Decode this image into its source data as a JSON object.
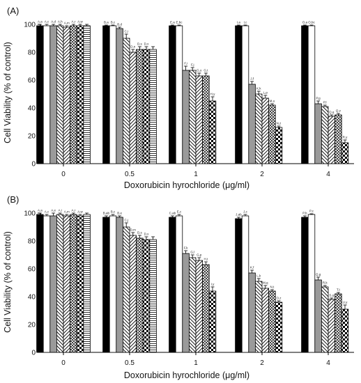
{
  "chart_data": [
    {
      "type": "bar",
      "panel_label": "(A)",
      "xlabel": "Doxorubicin hyrochloride (μg/ml)",
      "ylabel": "Cell Viability (% of control)",
      "ylim": [
        0,
        100
      ],
      "yticks": [
        "0",
        "20",
        "40",
        "60",
        "80",
        "100"
      ],
      "categories": [
        "0",
        "0.5",
        "1",
        "2",
        "4"
      ],
      "series_patterns": [
        "solid-black",
        "white",
        "solid-gray",
        "diagonal-back",
        "diagonal-fwd",
        "crosshatch",
        "checker",
        "horizontal"
      ],
      "groups": [
        {
          "values": [
            99,
            99,
            99,
            99,
            98,
            99,
            99,
            99
          ],
          "errors": [
            1,
            1,
            1,
            1,
            1,
            1,
            1,
            1
          ],
          "labels": [
            "A,a",
            "A,c",
            "A,d",
            "A,h",
            "A,m",
            "A,r",
            "A,w",
            ""
          ]
        },
        {
          "values": [
            99,
            99,
            97,
            90,
            80,
            82,
            82,
            82
          ],
          "errors": [
            0.5,
            0.5,
            1,
            3,
            2,
            2,
            2,
            2
          ],
          "labels": [
            "B,a",
            "B,c",
            "B,d",
            "C,i",
            "D,n",
            "D,s",
            "D,x",
            ""
          ]
        },
        {
          "values": [
            99,
            99,
            67,
            67,
            63,
            63,
            45,
            0
          ],
          "errors": [
            0.5,
            0.5,
            3,
            2,
            2,
            2,
            3,
            0
          ],
          "labels": [
            "E,a",
            "E,bc",
            "F,i",
            "F,j",
            "G,o",
            "G,t",
            "H,y",
            ""
          ]
        },
        {
          "values": [
            99,
            99,
            57,
            50,
            47,
            42,
            26,
            0
          ],
          "errors": [
            0.5,
            0.5,
            2,
            2,
            2,
            1,
            1,
            0
          ],
          "labels": [
            "I,a",
            "I,c",
            "J,f",
            "K,k",
            "L,p",
            "M,u",
            "N,z",
            ""
          ]
        },
        {
          "values": [
            99,
            99,
            43,
            41,
            34,
            35,
            15,
            0
          ],
          "errors": [
            0.5,
            0.5,
            2,
            1,
            1,
            1,
            2,
            0
          ],
          "labels": [
            "O,a",
            "O,bc",
            "P,g",
            "P,l",
            "Q,q",
            "Q,v",
            "R,y",
            ""
          ]
        }
      ]
    },
    {
      "type": "bar",
      "panel_label": "(B)",
      "xlabel": "Doxorubicin hyrochloride (μg/ml)",
      "ylabel": "Cell Viability (% of control)",
      "ylim": [
        0,
        100
      ],
      "yticks": [
        "0",
        "20",
        "40",
        "60",
        "80",
        "100"
      ],
      "categories": [
        "0",
        "0.5",
        "1",
        "2",
        "4"
      ],
      "series_patterns": [
        "solid-black",
        "white",
        "solid-gray",
        "diagonal-back",
        "diagonal-fwd",
        "crosshatch",
        "checker",
        "horizontal"
      ],
      "groups": [
        {
          "values": [
            99,
            98,
            98,
            99,
            98,
            99,
            98,
            99
          ],
          "errors": [
            1,
            1,
            2,
            1,
            1,
            1,
            1,
            1
          ],
          "labels": [
            "A,a",
            "A,c",
            "A,e",
            "A,i",
            "A,m",
            "A,r",
            "A,w",
            ""
          ]
        },
        {
          "values": [
            97,
            98,
            97,
            90,
            84,
            82,
            81,
            81
          ],
          "errors": [
            1,
            1,
            1,
            3,
            2,
            2,
            2,
            2
          ],
          "labels": [
            "B,ab",
            "B,c",
            "B,e",
            "C,j",
            "D,m",
            "D,s",
            "D,x",
            ""
          ]
        },
        {
          "values": [
            97,
            98,
            71,
            68,
            66,
            63,
            44,
            0
          ],
          "errors": [
            1,
            1,
            2,
            2,
            2,
            2,
            3,
            0
          ],
          "labels": [
            "C,ab",
            "E,c",
            "F,k",
            "G,l",
            "G,p",
            "H,t",
            "I,y",
            ""
          ]
        },
        {
          "values": [
            96,
            98,
            57,
            51,
            46,
            44,
            36,
            0
          ],
          "errors": [
            1,
            1,
            2,
            2,
            2,
            1,
            1,
            0
          ],
          "labels": [
            "J,ab",
            "J,c",
            "K,f",
            "L,k",
            "M,q",
            "N,t",
            "O,z",
            ""
          ]
        },
        {
          "values": [
            97,
            99,
            52,
            47,
            38,
            42,
            31,
            0
          ],
          "errors": [
            1,
            0.5,
            2,
            1,
            1,
            1,
            3,
            0
          ],
          "labels": [
            "P,b",
            "P,c",
            "Q,g",
            "R,k",
            "S,q",
            "T,t",
            "U,y",
            ""
          ]
        }
      ]
    }
  ]
}
